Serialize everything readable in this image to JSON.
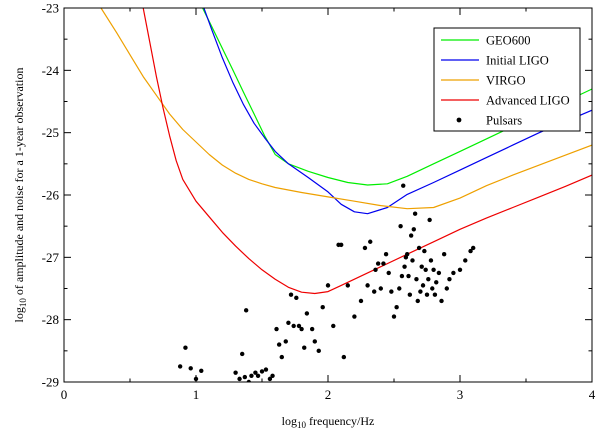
{
  "chart_data": {
    "type": "line",
    "title": "",
    "xlabel": {
      "prefix": "log",
      "subscript": "10",
      "suffix": " frequency/Hz"
    },
    "ylabel": {
      "prefix": "log",
      "subscript": "10",
      "suffix": " of amplitude and noise for a 1-year observation"
    },
    "xlim": [
      0,
      4
    ],
    "ylim": [
      -29,
      -23
    ],
    "x_ticks": [
      0,
      1,
      2,
      3,
      4
    ],
    "y_ticks": [
      -29,
      -28,
      -27,
      -26,
      -25,
      -24,
      -23
    ],
    "x_tick_labels": [
      "0",
      "1",
      "2",
      "3",
      "4"
    ],
    "y_tick_labels": [
      "-29",
      "-28",
      "-27",
      "-26",
      "-25",
      "-24",
      "-23"
    ],
    "grid": false,
    "legend_position": "top-right",
    "series": [
      {
        "name": "GEO600",
        "color": "#00ee00",
        "x": [
          1.05,
          1.12,
          1.2,
          1.28,
          1.36,
          1.44,
          1.52,
          1.6,
          1.7,
          1.85,
          2.0,
          2.15,
          2.3,
          2.45,
          2.6,
          2.8,
          3.0,
          3.2,
          3.4,
          3.6,
          3.8,
          4.0
        ],
        "y": [
          -23.0,
          -23.3,
          -23.65,
          -24.0,
          -24.35,
          -24.7,
          -25.05,
          -25.35,
          -25.5,
          -25.62,
          -25.72,
          -25.8,
          -25.84,
          -25.82,
          -25.7,
          -25.5,
          -25.3,
          -25.1,
          -24.9,
          -24.7,
          -24.5,
          -24.3
        ]
      },
      {
        "name": "Initial LIGO",
        "color": "#0000ee",
        "x": [
          1.06,
          1.12,
          1.2,
          1.28,
          1.36,
          1.44,
          1.52,
          1.6,
          1.7,
          1.85,
          2.0,
          2.1,
          2.2,
          2.3,
          2.45,
          2.6,
          2.8,
          3.0,
          3.2,
          3.4,
          3.6,
          3.8,
          4.0
        ],
        "y": [
          -23.0,
          -23.35,
          -23.8,
          -24.2,
          -24.55,
          -24.85,
          -25.08,
          -25.3,
          -25.5,
          -25.72,
          -25.95,
          -26.15,
          -26.27,
          -26.3,
          -26.2,
          -25.99,
          -25.8,
          -25.6,
          -25.4,
          -25.2,
          -25.0,
          -24.82,
          -24.64
        ]
      },
      {
        "name": "VIRGO",
        "color": "#eea000",
        "x": [
          0.28,
          0.4,
          0.5,
          0.6,
          0.7,
          0.8,
          0.9,
          1.0,
          1.1,
          1.2,
          1.3,
          1.4,
          1.5,
          1.6,
          1.8,
          2.0,
          2.2,
          2.4,
          2.6,
          2.8,
          3.0,
          3.2,
          3.4,
          3.6,
          3.8,
          4.0
        ],
        "y": [
          -23.0,
          -23.4,
          -23.75,
          -24.1,
          -24.4,
          -24.7,
          -24.95,
          -25.15,
          -25.35,
          -25.52,
          -25.65,
          -25.75,
          -25.82,
          -25.88,
          -25.96,
          -26.03,
          -26.1,
          -26.17,
          -26.22,
          -26.2,
          -26.05,
          -25.85,
          -25.68,
          -25.52,
          -25.36,
          -25.2
        ]
      },
      {
        "name": "Advanced LIGO",
        "color": "#ee0000",
        "x": [
          0.6,
          0.65,
          0.7,
          0.75,
          0.8,
          0.85,
          0.9,
          1.0,
          1.1,
          1.2,
          1.3,
          1.4,
          1.5,
          1.6,
          1.7,
          1.8,
          1.9,
          2.0,
          2.1,
          2.2,
          2.4,
          2.6,
          2.8,
          3.0,
          3.2,
          3.4,
          3.6,
          3.8,
          4.0
        ],
        "y": [
          -23.0,
          -23.55,
          -24.1,
          -24.6,
          -25.05,
          -25.45,
          -25.75,
          -26.1,
          -26.35,
          -26.6,
          -26.82,
          -27.02,
          -27.2,
          -27.35,
          -27.48,
          -27.56,
          -27.58,
          -27.55,
          -27.45,
          -27.35,
          -27.15,
          -26.95,
          -26.75,
          -26.55,
          -26.37,
          -26.2,
          -26.03,
          -25.86,
          -25.68
        ]
      },
      {
        "name": "Pulsars",
        "color": "#000000",
        "marker": "dot",
        "points": [
          [
            0.88,
            -28.75
          ],
          [
            0.92,
            -28.45
          ],
          [
            0.96,
            -28.78
          ],
          [
            1.0,
            -28.95
          ],
          [
            1.04,
            -28.82
          ],
          [
            1.3,
            -28.85
          ],
          [
            1.33,
            -28.95
          ],
          [
            1.35,
            -28.55
          ],
          [
            1.37,
            -28.92
          ],
          [
            1.38,
            -27.85
          ],
          [
            1.4,
            -29.0
          ],
          [
            1.42,
            -28.9
          ],
          [
            1.45,
            -28.85
          ],
          [
            1.47,
            -28.9
          ],
          [
            1.5,
            -28.83
          ],
          [
            1.53,
            -28.8
          ],
          [
            1.56,
            -28.95
          ],
          [
            1.58,
            -28.9
          ],
          [
            1.61,
            -28.15
          ],
          [
            1.63,
            -28.4
          ],
          [
            1.65,
            -28.6
          ],
          [
            1.68,
            -28.35
          ],
          [
            1.7,
            -28.05
          ],
          [
            1.72,
            -27.6
          ],
          [
            1.74,
            -28.1
          ],
          [
            1.76,
            -27.65
          ],
          [
            1.78,
            -28.1
          ],
          [
            1.8,
            -28.15
          ],
          [
            1.82,
            -28.45
          ],
          [
            1.84,
            -27.9
          ],
          [
            1.88,
            -28.15
          ],
          [
            1.9,
            -28.35
          ],
          [
            1.93,
            -28.5
          ],
          [
            1.96,
            -27.8
          ],
          [
            2.0,
            -27.45
          ],
          [
            2.04,
            -28.1
          ],
          [
            2.08,
            -26.8
          ],
          [
            2.1,
            -26.8
          ],
          [
            2.12,
            -28.6
          ],
          [
            2.15,
            -27.45
          ],
          [
            2.2,
            -27.95
          ],
          [
            2.25,
            -27.7
          ],
          [
            2.28,
            -26.85
          ],
          [
            2.3,
            -27.45
          ],
          [
            2.32,
            -26.75
          ],
          [
            2.35,
            -27.55
          ],
          [
            2.36,
            -27.2
          ],
          [
            2.38,
            -27.1
          ],
          [
            2.4,
            -27.5
          ],
          [
            2.42,
            -27.1
          ],
          [
            2.44,
            -26.95
          ],
          [
            2.46,
            -27.25
          ],
          [
            2.48,
            -27.55
          ],
          [
            2.5,
            -27.95
          ],
          [
            2.52,
            -27.8
          ],
          [
            2.54,
            -27.5
          ],
          [
            2.55,
            -26.5
          ],
          [
            2.56,
            -27.3
          ],
          [
            2.57,
            -25.85
          ],
          [
            2.58,
            -27.15
          ],
          [
            2.59,
            -27.0
          ],
          [
            2.6,
            -26.95
          ],
          [
            2.61,
            -27.3
          ],
          [
            2.62,
            -27.6
          ],
          [
            2.63,
            -26.65
          ],
          [
            2.64,
            -27.05
          ],
          [
            2.65,
            -26.55
          ],
          [
            2.66,
            -26.3
          ],
          [
            2.67,
            -27.35
          ],
          [
            2.68,
            -27.7
          ],
          [
            2.69,
            -26.85
          ],
          [
            2.7,
            -27.55
          ],
          [
            2.71,
            -27.15
          ],
          [
            2.72,
            -27.45
          ],
          [
            2.73,
            -26.9
          ],
          [
            2.74,
            -27.2
          ],
          [
            2.75,
            -27.6
          ],
          [
            2.76,
            -27.35
          ],
          [
            2.77,
            -26.4
          ],
          [
            2.78,
            -27.05
          ],
          [
            2.79,
            -27.5
          ],
          [
            2.8,
            -27.2
          ],
          [
            2.81,
            -27.6
          ],
          [
            2.82,
            -27.4
          ],
          [
            2.84,
            -27.25
          ],
          [
            2.86,
            -27.7
          ],
          [
            2.88,
            -26.95
          ],
          [
            2.9,
            -27.5
          ],
          [
            2.92,
            -27.35
          ],
          [
            2.95,
            -27.25
          ],
          [
            3.0,
            -27.2
          ],
          [
            3.04,
            -27.05
          ],
          [
            3.08,
            -26.9
          ],
          [
            3.1,
            -26.85
          ]
        ]
      }
    ]
  }
}
